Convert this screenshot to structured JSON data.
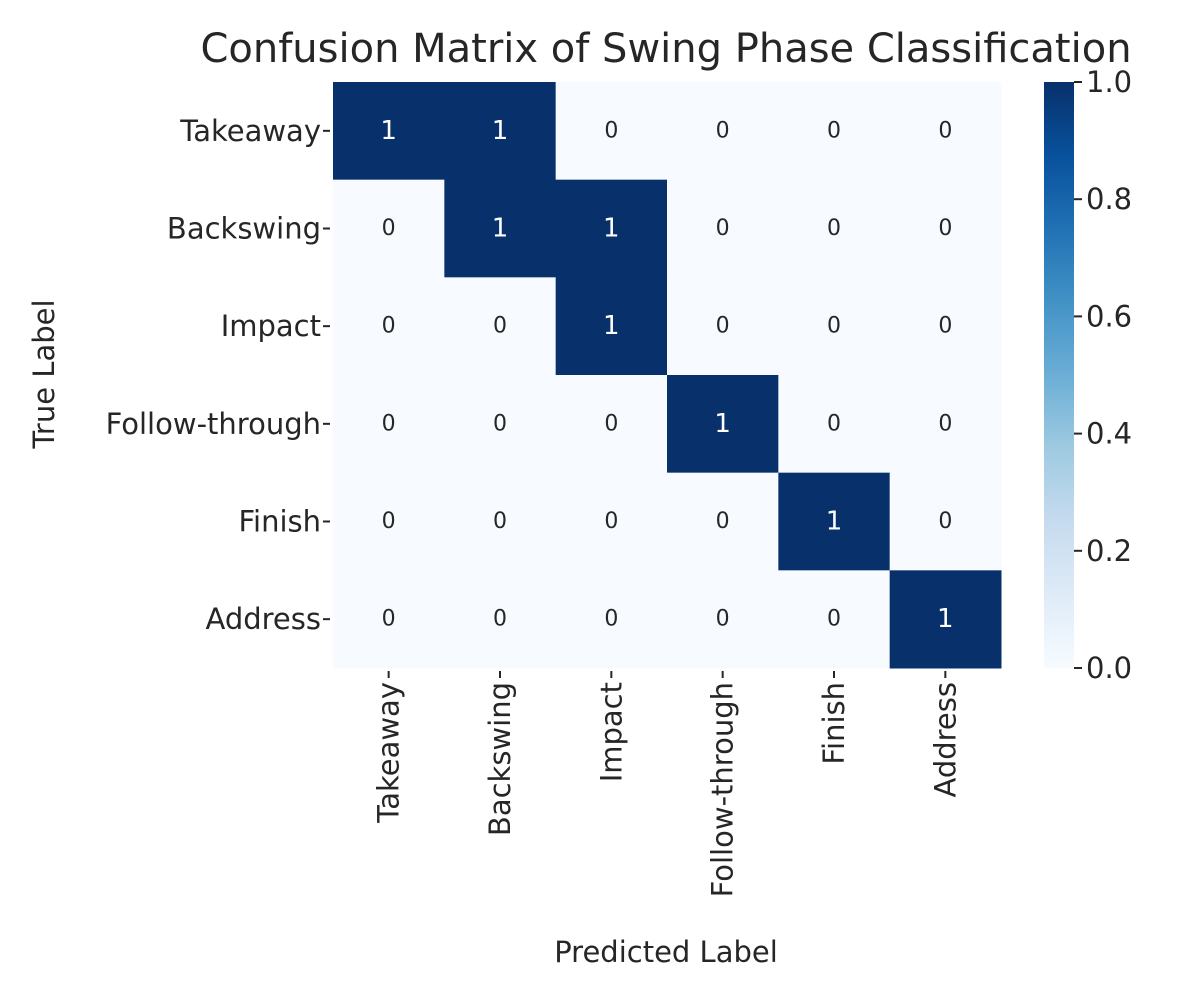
{
  "chart_data": {
    "type": "heatmap",
    "title": "Confusion Matrix of Swing Phase Classification",
    "xlabel": "Predicted Label",
    "ylabel": "True Label",
    "x_categories": [
      "Takeaway",
      "Backswing",
      "Impact",
      "Follow-through",
      "Finish",
      "Address"
    ],
    "y_categories": [
      "Takeaway",
      "Backswing",
      "Impact",
      "Follow-through",
      "Finish",
      "Address"
    ],
    "values": [
      [
        1,
        1,
        0,
        0,
        0,
        0
      ],
      [
        0,
        1,
        1,
        0,
        0,
        0
      ],
      [
        0,
        0,
        1,
        0,
        0,
        0
      ],
      [
        0,
        0,
        0,
        1,
        0,
        0
      ],
      [
        0,
        0,
        0,
        0,
        1,
        0
      ],
      [
        0,
        0,
        0,
        0,
        0,
        1
      ]
    ],
    "colorbar": {
      "colormap": "Blues",
      "range": [
        0.0,
        1.0
      ],
      "ticks": [
        "0.0",
        "0.2",
        "0.4",
        "0.6",
        "0.8",
        "1.0"
      ]
    },
    "annotations": true,
    "colors": {
      "low": "#f7fbff",
      "high": "#08306b",
      "text_dark": "#262626",
      "text_light": "#ffffff"
    }
  }
}
